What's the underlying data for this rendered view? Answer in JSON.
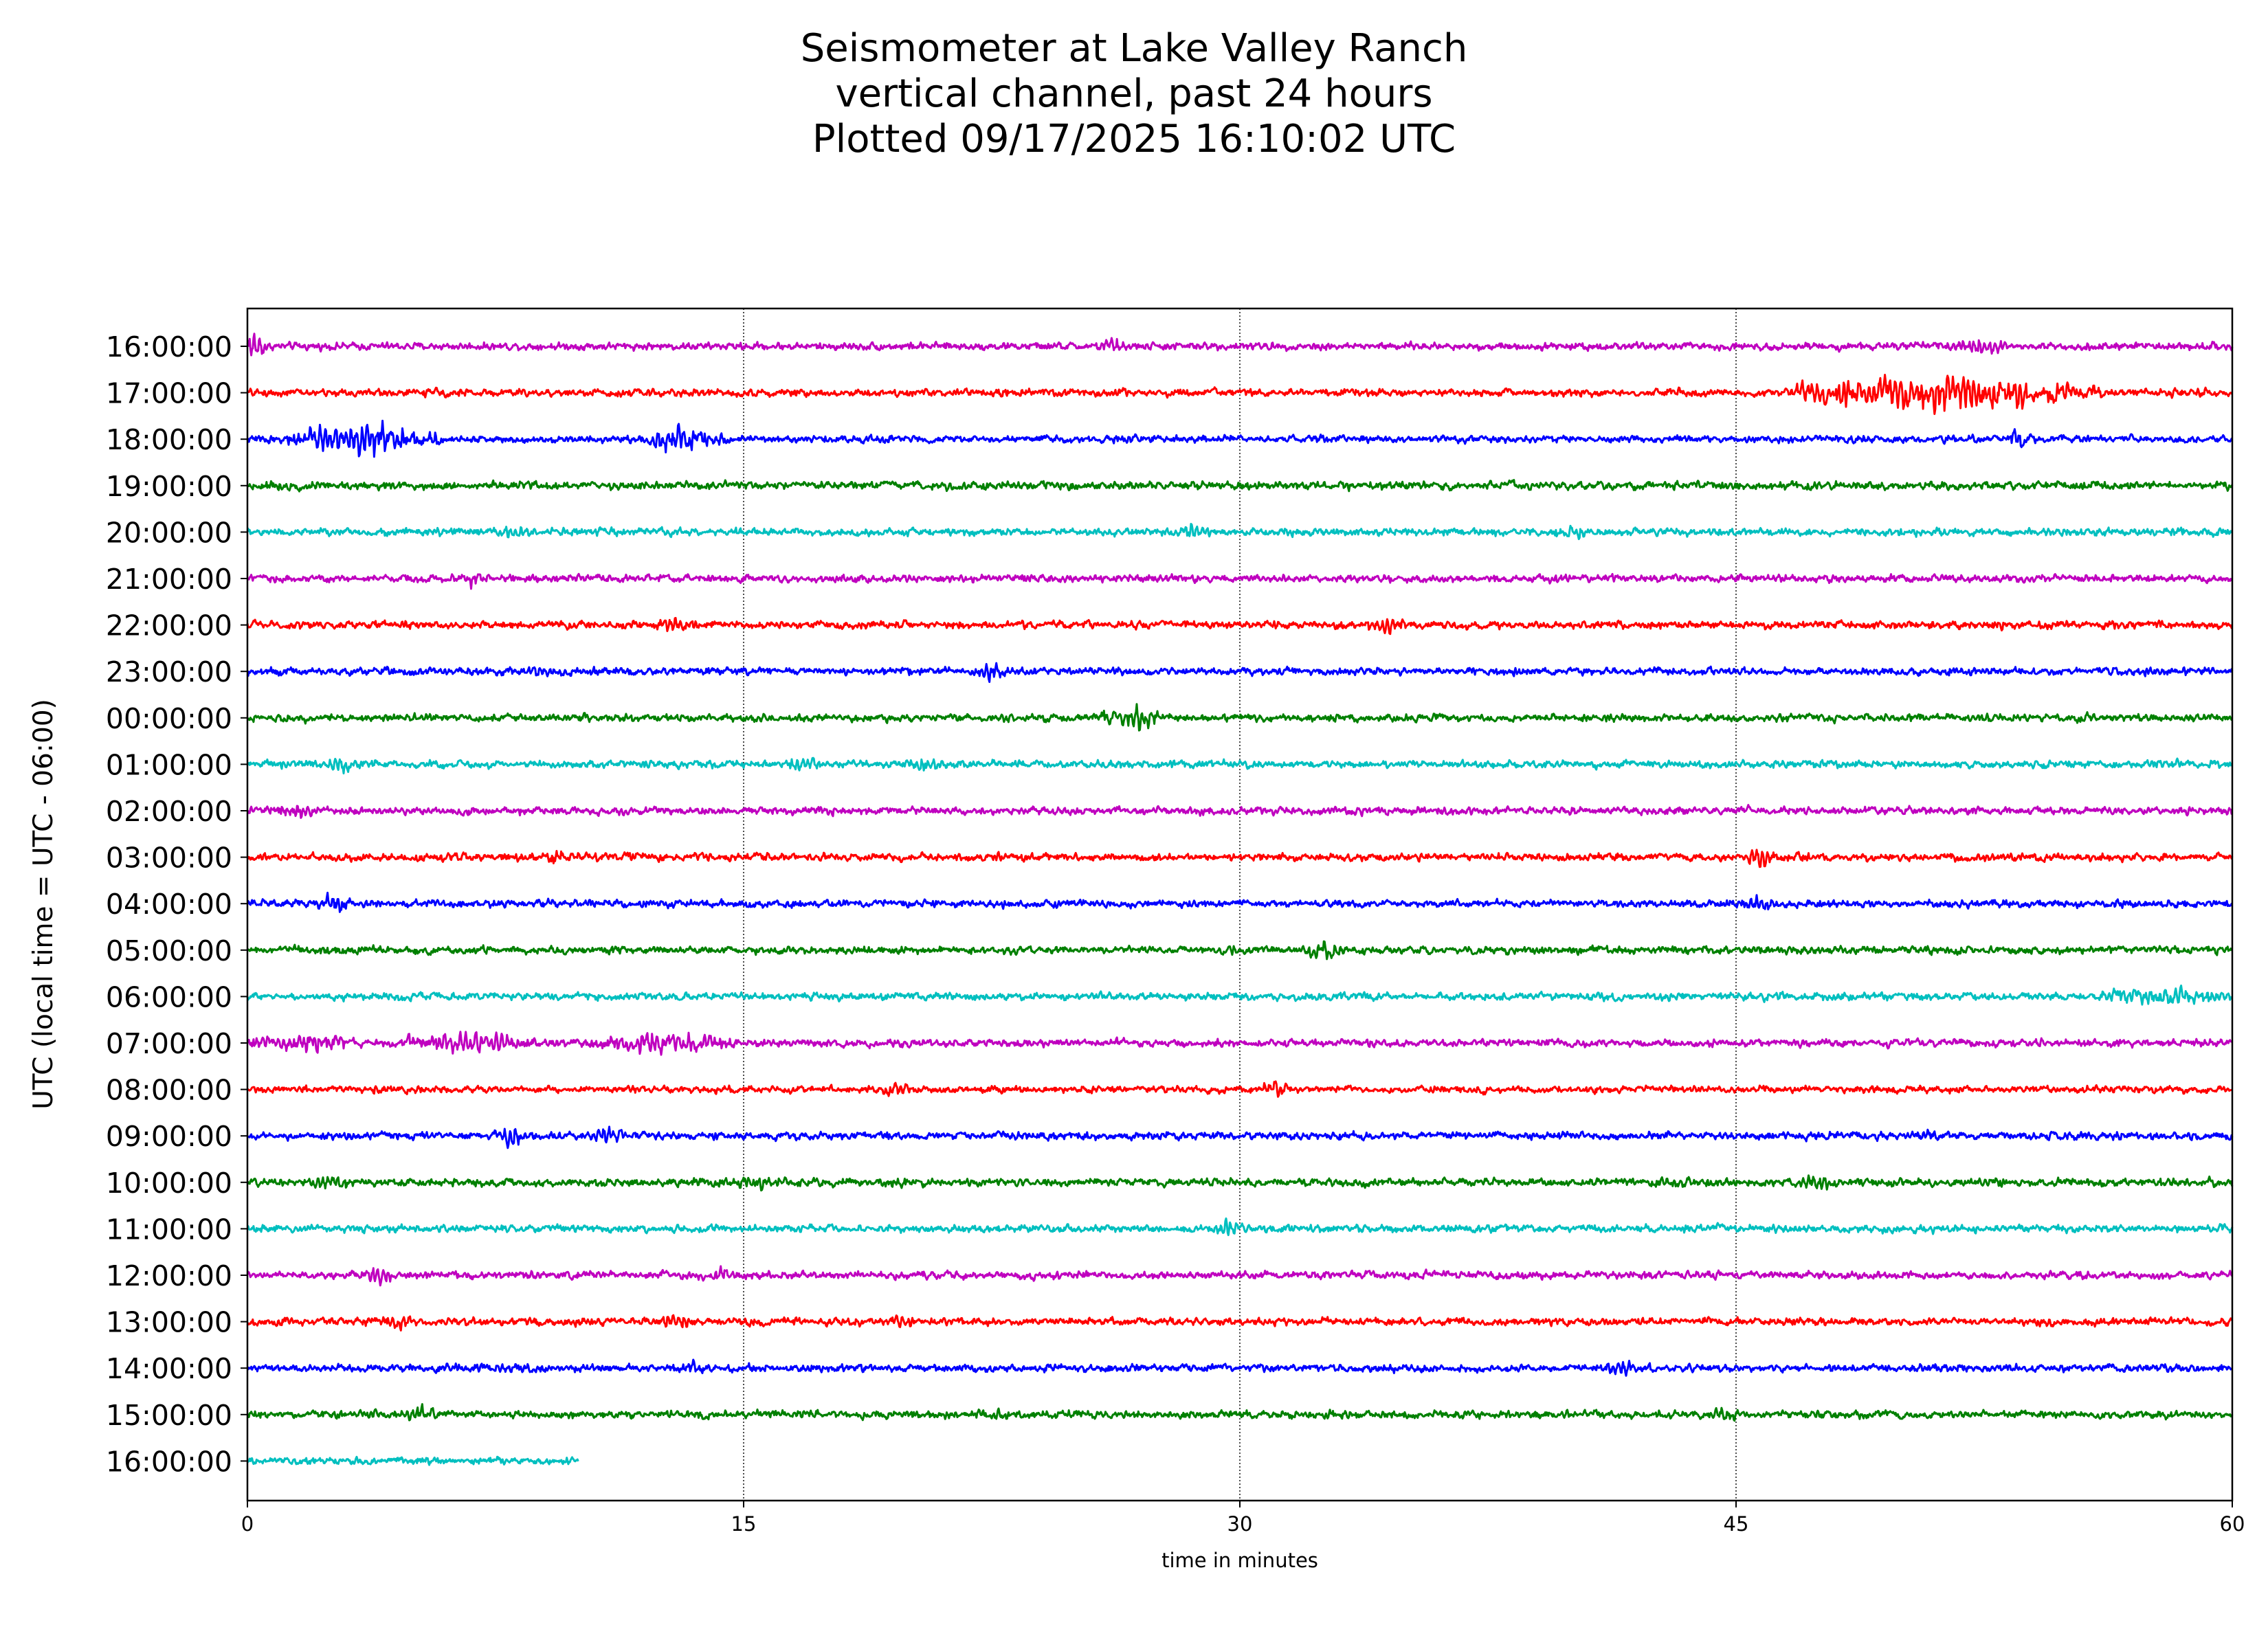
{
  "chart_data": {
    "type": "line",
    "title_lines": [
      "Seismometer at Lake Valley Ranch",
      "vertical channel, past 24 hours",
      "Plotted 09/17/2025 16:10:02 UTC"
    ],
    "xlabel": "time in minutes",
    "ylabel": "UTC (local time = UTC - 06:00)",
    "xlim": [
      0,
      60
    ],
    "x_ticks": [
      "0",
      "15",
      "30",
      "45",
      "60"
    ],
    "vertical_gridlines_at": [
      15,
      30,
      45
    ],
    "grid_style": "dotted",
    "legend": "none",
    "series": [
      {
        "label": "16:00:00",
        "color": "#bf00bf",
        "x_end": 60,
        "amplitude": 0.26,
        "events": [
          {
            "t": 0.1,
            "amp": 0.9,
            "dur": 0.4
          },
          {
            "t": 26.2,
            "amp": 0.45,
            "dur": 0.6
          },
          {
            "t": 52.5,
            "amp": 0.4,
            "dur": 2.0
          }
        ]
      },
      {
        "label": "17:00:00",
        "color": "#ff0000",
        "x_end": 60,
        "amplitude": 0.26,
        "events": [
          {
            "t": 47.5,
            "amp": 0.55,
            "dur": 2.5
          },
          {
            "t": 51.5,
            "amp": 0.95,
            "dur": 8.5
          }
        ]
      },
      {
        "label": "18:00:00",
        "color": "#0000ff",
        "x_end": 60,
        "amplitude": 0.24,
        "events": [
          {
            "t": 3.5,
            "amp": 0.85,
            "dur": 4.0
          },
          {
            "t": 13.0,
            "amp": 0.65,
            "dur": 2.5
          },
          {
            "t": 53.5,
            "amp": 0.5,
            "dur": 0.5
          }
        ]
      },
      {
        "label": "19:00:00",
        "color": "#008000",
        "x_end": 60,
        "amplitude": 0.28,
        "events": []
      },
      {
        "label": "20:00:00",
        "color": "#00bfbf",
        "x_end": 60,
        "amplitude": 0.26,
        "events": [
          {
            "t": 8.0,
            "amp": 0.4,
            "dur": 1.0
          },
          {
            "t": 28.5,
            "amp": 0.4,
            "dur": 1.0
          },
          {
            "t": 40.0,
            "amp": 0.4,
            "dur": 1.0
          }
        ]
      },
      {
        "label": "21:00:00",
        "color": "#bf00bf",
        "x_end": 60,
        "amplitude": 0.26,
        "events": [
          {
            "t": 6.8,
            "amp": 0.45,
            "dur": 0.5
          }
        ]
      },
      {
        "label": "22:00:00",
        "color": "#ff0000",
        "x_end": 60,
        "amplitude": 0.26,
        "events": [
          {
            "t": 12.8,
            "amp": 0.45,
            "dur": 1.0
          },
          {
            "t": 34.5,
            "amp": 0.45,
            "dur": 1.5
          }
        ]
      },
      {
        "label": "23:00:00",
        "color": "#0000ff",
        "x_end": 60,
        "amplitude": 0.26,
        "events": [
          {
            "t": 9.0,
            "amp": 0.4,
            "dur": 1.0
          },
          {
            "t": 22.5,
            "amp": 0.45,
            "dur": 1.0
          }
        ]
      },
      {
        "label": "00:00:00",
        "color": "#008000",
        "x_end": 60,
        "amplitude": 0.26,
        "events": [
          {
            "t": 26.8,
            "amp": 0.7,
            "dur": 1.5
          }
        ]
      },
      {
        "label": "01:00:00",
        "color": "#00bfbf",
        "x_end": 60,
        "amplitude": 0.26,
        "events": [
          {
            "t": 2.8,
            "amp": 0.45,
            "dur": 1.0
          },
          {
            "t": 16.8,
            "amp": 0.4,
            "dur": 1.0
          },
          {
            "t": 20.5,
            "amp": 0.4,
            "dur": 1.0
          }
        ]
      },
      {
        "label": "02:00:00",
        "color": "#bf00bf",
        "x_end": 60,
        "amplitude": 0.26,
        "events": [
          {
            "t": 1.5,
            "amp": 0.4,
            "dur": 1.5
          }
        ]
      },
      {
        "label": "03:00:00",
        "color": "#ff0000",
        "x_end": 60,
        "amplitude": 0.26,
        "events": [
          {
            "t": 9.5,
            "amp": 0.45,
            "dur": 0.8
          },
          {
            "t": 45.7,
            "amp": 0.55,
            "dur": 0.6
          }
        ]
      },
      {
        "label": "04:00:00",
        "color": "#0000ff",
        "x_end": 60,
        "amplitude": 0.26,
        "events": [
          {
            "t": 2.6,
            "amp": 0.55,
            "dur": 0.6
          },
          {
            "t": 45.8,
            "amp": 0.45,
            "dur": 1.0
          }
        ]
      },
      {
        "label": "05:00:00",
        "color": "#008000",
        "x_end": 60,
        "amplitude": 0.26,
        "events": [
          {
            "t": 32.6,
            "amp": 0.45,
            "dur": 1.0
          }
        ]
      },
      {
        "label": "06:00:00",
        "color": "#00bfbf",
        "x_end": 60,
        "amplitude": 0.26,
        "events": [
          {
            "t": 58.0,
            "amp": 0.55,
            "dur": 4.0
          }
        ]
      },
      {
        "label": "07:00:00",
        "color": "#bf00bf",
        "x_end": 60,
        "amplitude": 0.26,
        "events": [
          {
            "t": 1.5,
            "amp": 0.55,
            "dur": 3.0
          },
          {
            "t": 6.5,
            "amp": 0.55,
            "dur": 4.0
          },
          {
            "t": 12.5,
            "amp": 0.6,
            "dur": 4.0
          }
        ]
      },
      {
        "label": "08:00:00",
        "color": "#ff0000",
        "x_end": 60,
        "amplitude": 0.24,
        "events": [
          {
            "t": 19.6,
            "amp": 0.45,
            "dur": 0.6
          },
          {
            "t": 31.0,
            "amp": 0.4,
            "dur": 1.0
          }
        ]
      },
      {
        "label": "09:00:00",
        "color": "#0000ff",
        "x_end": 60,
        "amplitude": 0.26,
        "events": [
          {
            "t": 8.0,
            "amp": 0.45,
            "dur": 1.0
          },
          {
            "t": 10.9,
            "amp": 0.5,
            "dur": 0.6
          },
          {
            "t": 50.8,
            "amp": 0.4,
            "dur": 1.0
          }
        ]
      },
      {
        "label": "10:00:00",
        "color": "#008000",
        "x_end": 60,
        "amplitude": 0.28,
        "events": [
          {
            "t": 2.6,
            "amp": 0.45,
            "dur": 0.8
          },
          {
            "t": 15.5,
            "amp": 0.45,
            "dur": 1.0
          },
          {
            "t": 47.5,
            "amp": 0.45,
            "dur": 1.5
          }
        ]
      },
      {
        "label": "11:00:00",
        "color": "#00bfbf",
        "x_end": 60,
        "amplitude": 0.26,
        "events": [
          {
            "t": 29.6,
            "amp": 0.4,
            "dur": 0.6
          }
        ]
      },
      {
        "label": "12:00:00",
        "color": "#bf00bf",
        "x_end": 60,
        "amplitude": 0.26,
        "events": [
          {
            "t": 4.0,
            "amp": 0.4,
            "dur": 1.0
          },
          {
            "t": 14.3,
            "amp": 0.4,
            "dur": 0.8
          }
        ]
      },
      {
        "label": "13:00:00",
        "color": "#ff0000",
        "x_end": 60,
        "amplitude": 0.26,
        "events": [
          {
            "t": 4.5,
            "amp": 0.45,
            "dur": 0.8
          },
          {
            "t": 13.0,
            "amp": 0.45,
            "dur": 1.0
          },
          {
            "t": 19.8,
            "amp": 0.4,
            "dur": 0.8
          }
        ]
      },
      {
        "label": "14:00:00",
        "color": "#0000ff",
        "x_end": 60,
        "amplitude": 0.26,
        "events": [
          {
            "t": 13.5,
            "amp": 0.4,
            "dur": 1.0
          },
          {
            "t": 41.5,
            "amp": 0.4,
            "dur": 1.0
          }
        ]
      },
      {
        "label": "15:00:00",
        "color": "#008000",
        "x_end": 60,
        "amplitude": 0.26,
        "events": [
          {
            "t": 5.2,
            "amp": 0.45,
            "dur": 0.8
          },
          {
            "t": 22.5,
            "amp": 0.4,
            "dur": 0.8
          },
          {
            "t": 44.7,
            "amp": 0.4,
            "dur": 0.8
          }
        ]
      },
      {
        "label": "16:00:00",
        "color": "#00bfbf",
        "x_end": 10,
        "amplitude": 0.24,
        "events": []
      }
    ]
  }
}
